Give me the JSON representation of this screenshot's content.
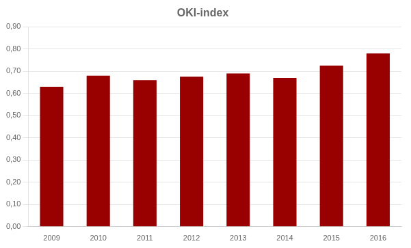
{
  "chart_data": {
    "type": "bar",
    "title": "OKI-index",
    "categories": [
      "2009",
      "2010",
      "2011",
      "2012",
      "2013",
      "2014",
      "2015",
      "2016"
    ],
    "values": [
      0.63,
      0.68,
      0.66,
      0.675,
      0.69,
      0.67,
      0.725,
      0.78
    ],
    "color": "#990000",
    "ylim": [
      0.0,
      0.9
    ],
    "yticks": [
      {
        "value": 0.0,
        "label": "0,00"
      },
      {
        "value": 0.1,
        "label": "0,10"
      },
      {
        "value": 0.2,
        "label": "0,20"
      },
      {
        "value": 0.3,
        "label": "0,30"
      },
      {
        "value": 0.4,
        "label": "0,40"
      },
      {
        "value": 0.5,
        "label": "0,50"
      },
      {
        "value": 0.6,
        "label": "0,60"
      },
      {
        "value": 0.7,
        "label": "0,70"
      },
      {
        "value": 0.8,
        "label": "0,80"
      },
      {
        "value": 0.9,
        "label": "0,90"
      }
    ],
    "grid": true
  }
}
